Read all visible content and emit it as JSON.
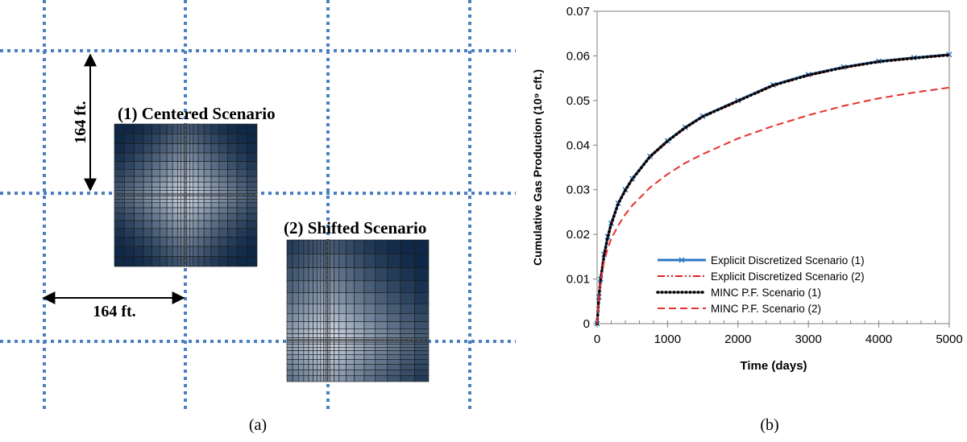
{
  "panel_a": {
    "caption": "(a)",
    "centered_label": "(1) Centered Scenario",
    "shifted_label": "(2) Shifted Scenario",
    "dim_vertical": "164 ft.",
    "dim_horizontal": "164 ft."
  },
  "panel_b": {
    "caption": "(b)"
  },
  "colors": {
    "grid_dotted": "#4a7fc1",
    "cell_dark": "#0f2846",
    "cell_light": "#dfe8f4",
    "explicit_1": "#2f78c4",
    "explicit_2": "#e0201f",
    "minc_1": "#000000",
    "minc_2": "#e8302c"
  },
  "chart_data": {
    "type": "line",
    "title": "",
    "xlabel": "Time (days)",
    "ylabel": "Cumulative Gas Production (10⁹ cft.)",
    "xlim": [
      0,
      5000
    ],
    "ylim": [
      0,
      0.07
    ],
    "x_ticks": [
      "0",
      "1000",
      "2000",
      "3000",
      "4000",
      "5000"
    ],
    "y_ticks": [
      "0",
      "0.01",
      "0.02",
      "0.03",
      "0.04",
      "0.05",
      "0.06",
      "0.07"
    ],
    "grid": false,
    "legend_position": "bottom-center",
    "x": [
      0,
      25,
      50,
      100,
      150,
      200,
      300,
      400,
      500,
      750,
      1000,
      1250,
      1500,
      2000,
      2500,
      3000,
      3500,
      4000,
      4500,
      5000
    ],
    "series": [
      {
        "name": "Explicit Discretized Scenario (1)",
        "values": [
          0,
          0.006,
          0.01,
          0.0155,
          0.0195,
          0.0225,
          0.027,
          0.03,
          0.0325,
          0.0375,
          0.041,
          0.044,
          0.0465,
          0.05,
          0.0535,
          0.0558,
          0.0575,
          0.0588,
          0.0596,
          0.0603
        ]
      },
      {
        "name": "Explicit Discretized Scenario (2)",
        "values": [
          0,
          0.0058,
          0.0098,
          0.0152,
          0.0192,
          0.0222,
          0.0268,
          0.0298,
          0.0323,
          0.0373,
          0.0408,
          0.0438,
          0.0463,
          0.0498,
          0.0533,
          0.0556,
          0.0573,
          0.0587,
          0.0595,
          0.0602
        ]
      },
      {
        "name": "MINC P.F. Scenario (1)",
        "values": [
          0,
          0.0059,
          0.0099,
          0.0153,
          0.0193,
          0.0223,
          0.0269,
          0.0299,
          0.0324,
          0.0374,
          0.0409,
          0.0439,
          0.0464,
          0.0499,
          0.0534,
          0.0557,
          0.0574,
          0.0587,
          0.0595,
          0.0602
        ]
      },
      {
        "name": "MINC P.F. Scenario (2)",
        "values": [
          0,
          0.006,
          0.0095,
          0.014,
          0.0168,
          0.019,
          0.022,
          0.0245,
          0.0265,
          0.0305,
          0.0335,
          0.036,
          0.038,
          0.0415,
          0.0443,
          0.0467,
          0.0488,
          0.0505,
          0.0518,
          0.0529
        ]
      }
    ]
  }
}
